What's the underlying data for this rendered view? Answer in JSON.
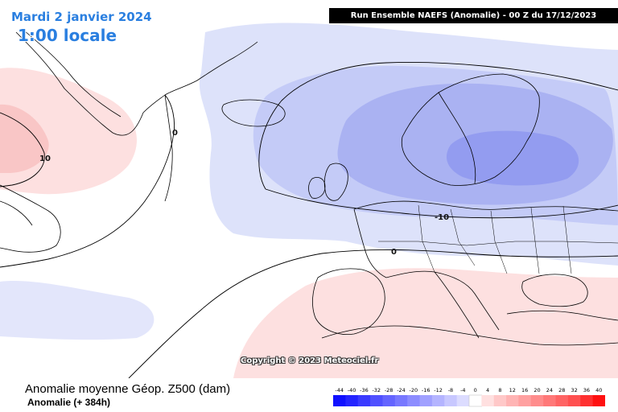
{
  "header": {
    "date": "Mardi 2 janvier 2024",
    "local_time": "1:00 locale",
    "run_info": "Run Ensemble NAEFS  (Anomalie)  - 00 Z du 17/12/2023"
  },
  "map": {
    "copyright": "Copyright © 2023 Meteociel.fr",
    "contour_labels": [
      "10",
      "0",
      "-10",
      "0"
    ],
    "colors": {
      "negative_light": "#dde2fa",
      "negative_mid": "#c4cbf7",
      "negative_strong": "#aab2f2",
      "negative_core": "#939cf0",
      "positive_light": "#fde0e0",
      "positive_mid": "#f9c6c6",
      "coastline": "#000000"
    }
  },
  "footer": {
    "title": "Anomalie moyenne Géop. Z500 (dam)",
    "subtitle": "Anomalie (+ 384h)"
  },
  "legend": {
    "ticks": [
      "-44",
      "-40",
      "-36",
      "-32",
      "-28",
      "-24",
      "-20",
      "-16",
      "-12",
      "-8",
      "-4",
      "0",
      "4",
      "8",
      "12",
      "16",
      "20",
      "24",
      "28",
      "32",
      "36",
      "40"
    ],
    "colors": [
      "#1010ff",
      "#2424ff",
      "#3a3aff",
      "#5050ff",
      "#6464ff",
      "#7878ff",
      "#8c8cff",
      "#a0a0ff",
      "#b4b4ff",
      "#c8c8ff",
      "#dcdcff",
      "#ffffff",
      "#ffe0e0",
      "#ffc8c8",
      "#ffb4b4",
      "#ffa0a0",
      "#ff8c8c",
      "#ff7878",
      "#ff6464",
      "#ff5050",
      "#ff3030",
      "#ff1010"
    ]
  }
}
